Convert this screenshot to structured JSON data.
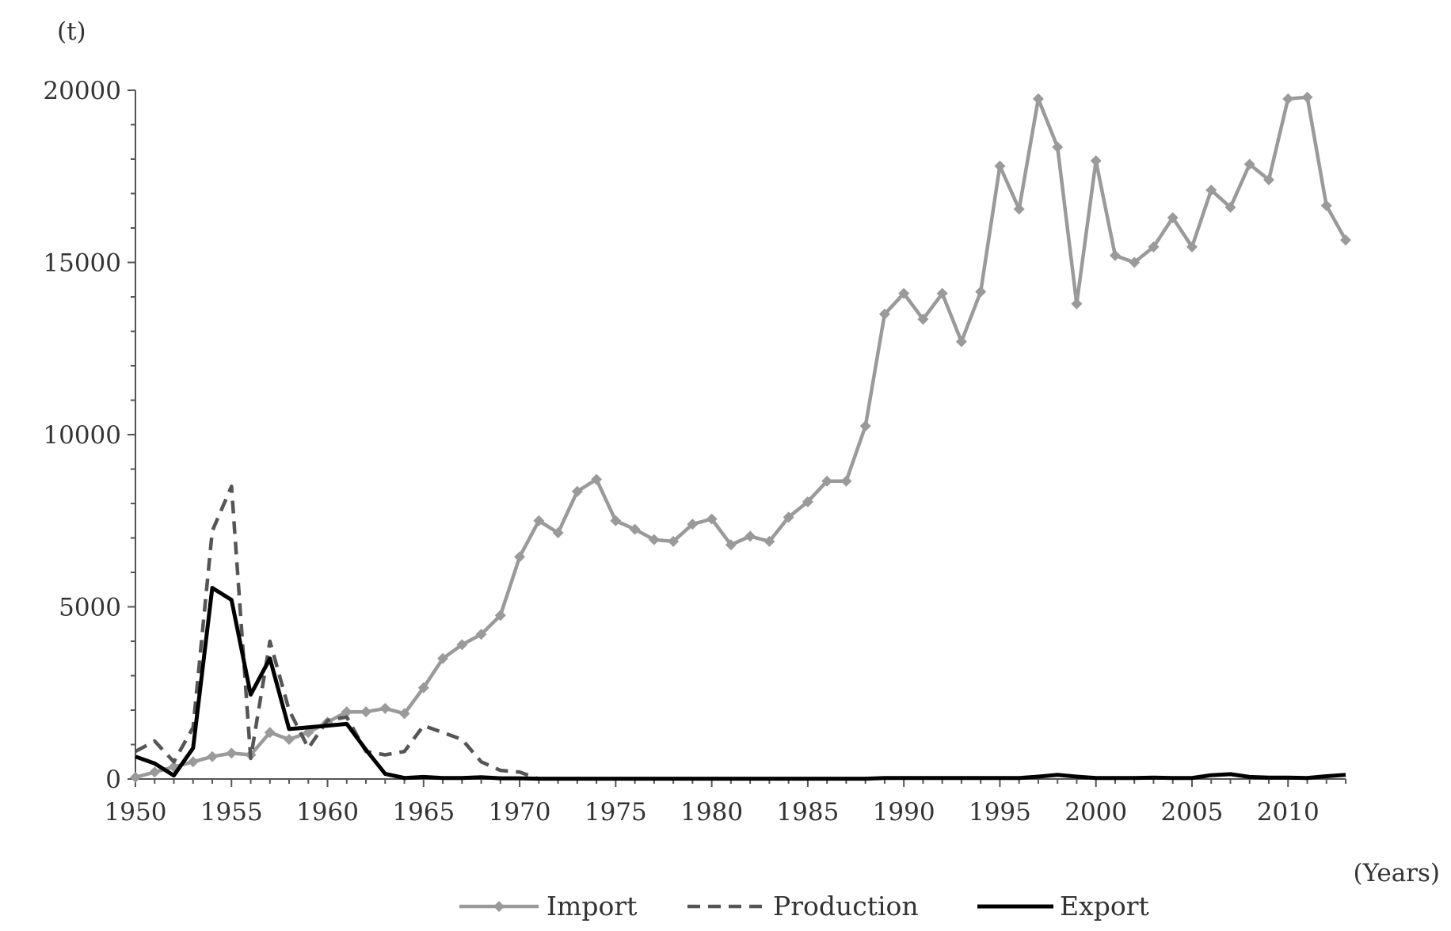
{
  "chart_data": {
    "type": "line",
    "xlabel": "(Years)",
    "ylabel": "(t)",
    "xlim": [
      1950,
      2013
    ],
    "ylim": [
      0,
      20000
    ],
    "x_ticks": [
      1950,
      1955,
      1960,
      1965,
      1970,
      1975,
      1980,
      1985,
      1990,
      1995,
      2000,
      2005,
      2010
    ],
    "y_ticks": [
      0,
      5000,
      10000,
      15000,
      20000
    ],
    "legend_position": "bottom",
    "grid": false,
    "x": [
      1950,
      1951,
      1952,
      1953,
      1954,
      1955,
      1956,
      1957,
      1958,
      1959,
      1960,
      1961,
      1962,
      1963,
      1964,
      1965,
      1966,
      1967,
      1968,
      1969,
      1970,
      1971,
      1972,
      1973,
      1974,
      1975,
      1976,
      1977,
      1978,
      1979,
      1980,
      1981,
      1982,
      1983,
      1984,
      1985,
      1986,
      1987,
      1988,
      1989,
      1990,
      1991,
      1992,
      1993,
      1994,
      1995,
      1996,
      1997,
      1998,
      1999,
      2000,
      2001,
      2002,
      2003,
      2004,
      2005,
      2006,
      2007,
      2008,
      2009,
      2010,
      2011,
      2012,
      2013
    ],
    "series": [
      {
        "name": "Import",
        "color": "#9a9a9a",
        "style": "solid-marker",
        "values": [
          50,
          200,
          350,
          500,
          650,
          750,
          700,
          1350,
          1150,
          1350,
          1650,
          1950,
          1950,
          2050,
          1900,
          2650,
          3500,
          3900,
          4200,
          4750,
          6450,
          7500,
          7150,
          8350,
          8700,
          7500,
          7250,
          6950,
          6900,
          7400,
          7550,
          6800,
          7050,
          6900,
          7600,
          8050,
          8650,
          8650,
          10250,
          13500,
          14100,
          13350,
          14100,
          12700,
          14150,
          17800,
          16550,
          19750,
          18350,
          13800,
          17950,
          15200,
          15000,
          15450,
          16300,
          15450,
          17100,
          16600,
          17850,
          17400,
          19750,
          19800,
          16650,
          15650
        ]
      },
      {
        "name": "Production",
        "color": "#555555",
        "style": "dashed",
        "values": [
          800,
          1100,
          500,
          1500,
          7200,
          8500,
          600,
          4000,
          2000,
          900,
          1700,
          1800,
          800,
          700,
          800,
          1550,
          1350,
          1150,
          500,
          250,
          200,
          0,
          null,
          null,
          null,
          null,
          null,
          null,
          null,
          null,
          null,
          null,
          null,
          null,
          null,
          null,
          null,
          null,
          null,
          null,
          null,
          null,
          null,
          null,
          null,
          null,
          null,
          null,
          null,
          null,
          null,
          null,
          null,
          null,
          null,
          null,
          null,
          null,
          null,
          null,
          null,
          null,
          null,
          null
        ]
      },
      {
        "name": "Export",
        "color": "#000000",
        "style": "solid",
        "values": [
          650,
          450,
          100,
          900,
          5550,
          5200,
          2450,
          3500,
          1450,
          1500,
          1550,
          1600,
          850,
          150,
          30,
          60,
          30,
          30,
          50,
          20,
          20,
          10,
          10,
          10,
          10,
          10,
          10,
          10,
          10,
          10,
          10,
          10,
          10,
          10,
          10,
          10,
          10,
          10,
          10,
          30,
          30,
          30,
          30,
          30,
          30,
          30,
          30,
          70,
          120,
          70,
          30,
          30,
          30,
          40,
          30,
          30,
          110,
          140,
          60,
          40,
          40,
          30,
          80,
          120
        ]
      }
    ]
  }
}
